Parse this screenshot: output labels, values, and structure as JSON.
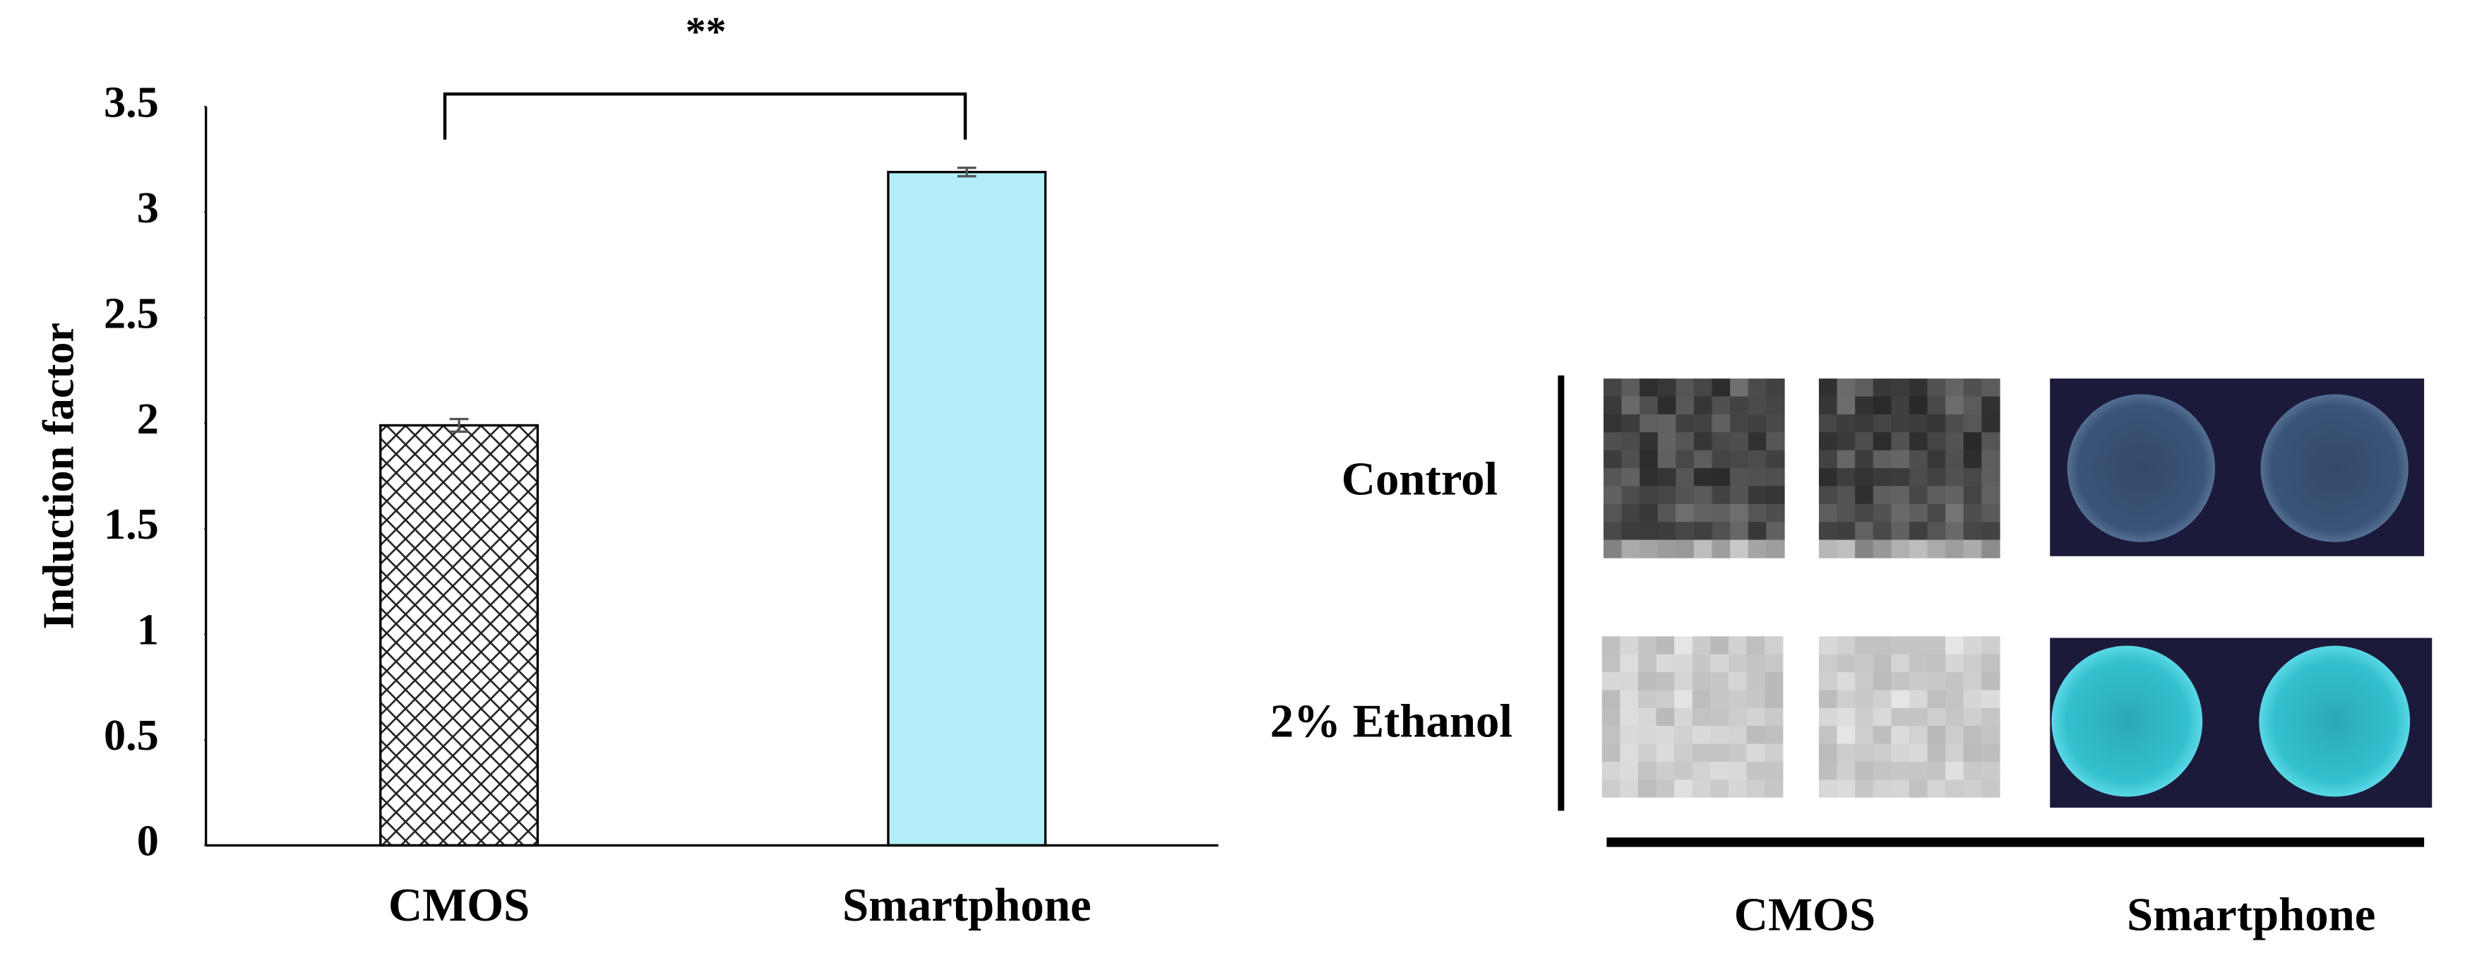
{
  "chart_data": {
    "type": "bar",
    "ylabel": "Induction factor",
    "significance": "**",
    "categories": [
      "CMOS",
      "Smartphone"
    ],
    "values": [
      1.99,
      3.19
    ],
    "errors": [
      0.03,
      0.02
    ],
    "fills": [
      "#ffffff",
      "#b3eef8"
    ],
    "hatch": [
      true,
      false
    ],
    "ylim": [
      0,
      3.5
    ],
    "yticks": [
      0,
      0.5,
      1,
      1.5,
      2,
      2.5,
      3,
      3.5
    ]
  },
  "image_panel": {
    "row_labels": [
      "Control",
      "2% Ethanol"
    ],
    "column_labels": [
      "CMOS",
      "Smartphone"
    ]
  }
}
